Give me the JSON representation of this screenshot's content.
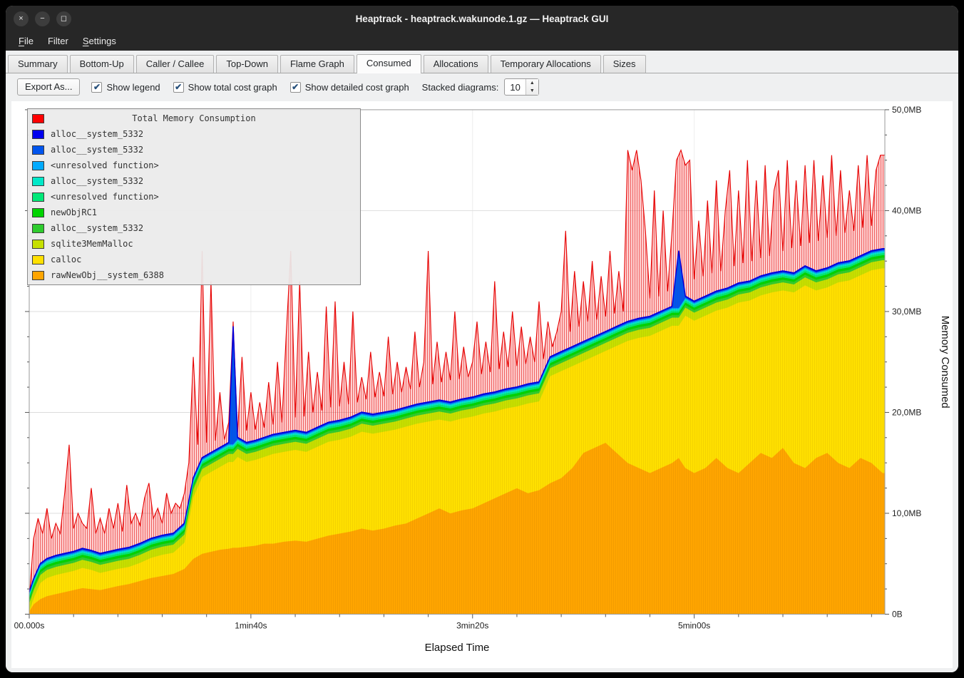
{
  "window": {
    "title": "Heaptrack - heaptrack.wakunode.1.gz — Heaptrack GUI",
    "controls": {
      "close": "×",
      "minimize": "−",
      "maximize": "◻"
    }
  },
  "menubar": {
    "items": [
      {
        "label": "File",
        "mnemonic": 0
      },
      {
        "label": "Filter",
        "mnemonic": null
      },
      {
        "label": "Settings",
        "mnemonic": 0
      }
    ]
  },
  "tabs": [
    {
      "label": "Summary",
      "active": false
    },
    {
      "label": "Bottom-Up",
      "active": false
    },
    {
      "label": "Caller / Callee",
      "active": false
    },
    {
      "label": "Top-Down",
      "active": false
    },
    {
      "label": "Flame Graph",
      "active": false
    },
    {
      "label": "Consumed",
      "active": true
    },
    {
      "label": "Allocations",
      "active": false
    },
    {
      "label": "Temporary Allocations",
      "active": false
    },
    {
      "label": "Sizes",
      "active": false
    }
  ],
  "toolbar": {
    "export_button": "Export As...",
    "checkboxes": [
      {
        "label": "Show legend",
        "checked": true
      },
      {
        "label": "Show total cost graph",
        "checked": true
      },
      {
        "label": "Show detailed cost graph",
        "checked": true
      }
    ],
    "stacked_label": "Stacked diagrams:",
    "stacked_value": "10"
  },
  "chart_data": {
    "type": "area",
    "title": "Total Memory Consumption",
    "units": "MB",
    "x_axis": {
      "label": "Elapsed Time",
      "max_seconds": 386,
      "ticks": [
        {
          "t": 0,
          "label": "00.000s"
        },
        {
          "t": 100,
          "label": "1min40s"
        },
        {
          "t": 200,
          "label": "3min20s"
        },
        {
          "t": 300,
          "label": "5min00s"
        }
      ]
    },
    "y_axis": {
      "label": "Memory Consumed",
      "max_mb": 50,
      "ticks": [
        {
          "v": 0,
          "label": "0B"
        },
        {
          "v": 10,
          "label": "10,0MB"
        },
        {
          "v": 20,
          "label": "20,0MB"
        },
        {
          "v": 30,
          "label": "30,0MB"
        },
        {
          "v": 40,
          "label": "40,0MB"
        },
        {
          "v": 50,
          "label": "50,0MB"
        }
      ]
    },
    "legend": [
      {
        "label": "Total Memory Consumption",
        "color": "#ff0000",
        "is_title": true
      },
      {
        "label": "alloc__system_5332",
        "color": "#0000ee"
      },
      {
        "label": "alloc__system_5332",
        "color": "#0055ee"
      },
      {
        "label": "<unresolved function>",
        "color": "#00aaff"
      },
      {
        "label": "alloc__system_5332",
        "color": "#00e8c8"
      },
      {
        "label": "<unresolved function>",
        "color": "#00e878"
      },
      {
        "label": "newObjRC1",
        "color": "#00d400"
      },
      {
        "label": "alloc__system_5332",
        "color": "#2ecc2e"
      },
      {
        "label": "sqlite3MemMalloc",
        "color": "#c6e000"
      },
      {
        "label": "calloc",
        "color": "#ffe000"
      },
      {
        "label": "rawNewObj__system_6388",
        "color": "#ffa500"
      }
    ],
    "x": [
      0,
      2,
      5,
      8,
      12,
      16,
      20,
      24,
      28,
      32,
      36,
      40,
      45,
      50,
      55,
      60,
      65,
      70,
      74,
      78,
      82,
      86,
      90,
      92,
      94,
      98,
      102,
      106,
      110,
      115,
      120,
      125,
      130,
      135,
      140,
      145,
      150,
      155,
      160,
      165,
      170,
      175,
      180,
      185,
      190,
      195,
      200,
      205,
      210,
      215,
      220,
      225,
      230,
      235,
      240,
      245,
      250,
      255,
      260,
      265,
      270,
      275,
      280,
      285,
      290,
      293,
      296,
      300,
      305,
      310,
      315,
      320,
      325,
      330,
      335,
      340,
      345,
      350,
      355,
      360,
      365,
      370,
      375,
      380,
      385
    ],
    "stack_series_bottom_to_top": [
      {
        "name": "rawNewObj__system_6388",
        "color": "#ffa500",
        "values": [
          0.3,
          1.0,
          1.5,
          1.8,
          2.0,
          2.2,
          2.4,
          2.6,
          2.5,
          2.4,
          2.6,
          2.8,
          3.0,
          3.3,
          3.6,
          3.8,
          4.0,
          4.5,
          5.5,
          6.0,
          6.2,
          6.4,
          6.5,
          6.6,
          6.6,
          6.7,
          6.8,
          7.0,
          7.0,
          7.2,
          7.3,
          7.2,
          7.5,
          7.8,
          8.0,
          8.2,
          8.5,
          8.3,
          8.5,
          8.8,
          9.0,
          9.5,
          10.0,
          10.5,
          10.0,
          10.3,
          10.5,
          11.0,
          11.5,
          12.0,
          12.5,
          12.0,
          12.3,
          13.0,
          13.5,
          14.5,
          16.0,
          16.5,
          17.0,
          16.0,
          15.0,
          14.5,
          14.0,
          14.5,
          15.0,
          15.5,
          14.5,
          14.0,
          14.5,
          15.5,
          14.5,
          14.0,
          15.0,
          16.0,
          15.5,
          16.5,
          15.0,
          14.5,
          15.5,
          16.0,
          15.0,
          14.5,
          15.5,
          15.0,
          14.0
        ]
      },
      {
        "name": "calloc",
        "color": "#ffe000",
        "values": [
          0,
          0.6,
          1.6,
          1.8,
          1.9,
          1.9,
          1.9,
          2.0,
          1.9,
          1.7,
          1.7,
          1.7,
          1.7,
          1.8,
          2.0,
          2.1,
          2.1,
          2.6,
          6.1,
          7.6,
          7.9,
          8.2,
          8.6,
          8.5,
          9.0,
          8.4,
          8.5,
          8.6,
          8.9,
          8.9,
          9.0,
          8.9,
          9.1,
          9.3,
          9.3,
          9.4,
          9.6,
          9.6,
          9.6,
          9.5,
          9.6,
          9.4,
          9.1,
          8.8,
          9.1,
          9.1,
          9.1,
          8.9,
          8.6,
          8.4,
          8.1,
          8.9,
          8.8,
          10.6,
          10.6,
          10.1,
          9.1,
          9.1,
          9.1,
          10.6,
          12.1,
          12.9,
          13.6,
          13.6,
          13.6,
          13.1,
          15.1,
          15.1,
          15.1,
          14.6,
          15.9,
          16.9,
          16.1,
          15.6,
          16.4,
          15.6,
          16.9,
          18.1,
          16.6,
          16.4,
          17.9,
          18.6,
          18.1,
          19.1,
          20.3
        ]
      },
      {
        "name": "sqlite3MemMalloc",
        "color": "#c6e000",
        "const": 0.8
      },
      {
        "name": "alloc__system_5332",
        "color": "#2ecc2e",
        "const": 0.25
      },
      {
        "name": "newObjRC1",
        "color": "#00d400",
        "const": 0.25
      },
      {
        "name": "<unresolved function>",
        "color": "#00e878",
        "const": 0.2
      },
      {
        "name": "alloc__system_5332",
        "color": "#00e8c8",
        "const": 0.15
      },
      {
        "name": "<unresolved function>",
        "color": "#00aaff",
        "const": 0.1
      },
      {
        "name": "alloc__system_5332",
        "color": "#0055ee",
        "values": [
          0.1,
          0.1,
          0.1,
          0.1,
          0.1,
          0.1,
          0.1,
          0.1,
          0.1,
          0.1,
          0.1,
          0.1,
          0.1,
          0.1,
          0.1,
          0.1,
          0.1,
          0.1,
          0.1,
          0.1,
          0.1,
          0.1,
          0.1,
          11.6,
          0.1,
          0.1,
          0.1,
          0.1,
          0.1,
          0.1,
          0.1,
          0.1,
          0.1,
          0.1,
          0.1,
          0.1,
          0.1,
          0.1,
          0.1,
          0.1,
          0.1,
          0.1,
          0.1,
          0.1,
          0.1,
          0.1,
          0.1,
          0.1,
          0.1,
          0.1,
          0.1,
          0.1,
          0.1,
          0.1,
          0.1,
          0.1,
          0.1,
          0.1,
          0.1,
          0.1,
          0.1,
          0.1,
          0.1,
          0.1,
          0.1,
          5.6,
          0.1,
          0.1,
          0.1,
          0.1,
          0.1,
          0.1,
          0.1,
          0.1,
          0.1,
          0.1,
          0.1,
          0.1,
          0.1,
          0.1,
          0.1,
          0.1,
          0.1,
          0.1,
          0.1
        ]
      },
      {
        "name": "alloc__system_5332",
        "color": "#0000ee",
        "const": 0.08
      }
    ],
    "total_series": {
      "name": "Total Memory Consumption",
      "color": "#ff0000",
      "x_step_seconds": 2,
      "values": [
        1.5,
        7.5,
        9.5,
        8,
        10.5,
        7.5,
        9,
        8,
        12,
        16.8,
        8.5,
        10,
        9,
        8.5,
        12.5,
        8,
        9.5,
        8,
        10.5,
        8.5,
        11,
        8.2,
        12.8,
        9,
        10,
        8.8,
        11.5,
        13,
        9.5,
        10.5,
        9,
        12,
        10,
        11,
        10.5,
        12,
        15,
        25.5,
        16.8,
        36,
        17,
        33,
        17.2,
        22,
        17.3,
        19,
        29,
        18,
        25.5,
        18.2,
        22,
        18.3,
        21,
        18.5,
        23,
        18.8,
        25,
        19,
        28,
        36,
        19.5,
        33,
        19.6,
        26,
        20,
        24,
        20.2,
        30.5,
        20.5,
        31,
        20.6,
        25,
        20.8,
        30,
        21,
        23.5,
        21.3,
        26,
        21.5,
        24,
        21.6,
        27.5,
        21.8,
        25,
        22,
        24.5,
        22.3,
        28,
        22.5,
        25,
        36,
        22.8,
        27,
        23,
        26,
        23.2,
        30,
        23.3,
        26.5,
        23.5,
        25,
        29,
        23.8,
        27,
        24,
        33,
        24.3,
        28,
        24.5,
        30,
        24.6,
        28.5,
        24.8,
        27.5,
        25,
        31,
        25.3,
        29,
        26.5,
        28,
        30,
        38,
        28,
        34,
        28.5,
        33,
        29,
        35,
        29.2,
        33.5,
        29.5,
        36,
        29.8,
        34,
        30,
        46,
        44,
        46,
        43,
        38,
        31.3,
        42,
        31.5,
        40,
        32,
        38,
        45,
        46,
        44.5,
        45,
        33.2,
        39,
        33.5,
        41,
        33.8,
        43,
        34,
        40,
        44,
        34.5,
        42,
        34.8,
        45,
        35,
        43,
        35.3,
        44.5,
        35.5,
        42,
        44,
        36,
        45,
        36.3,
        43,
        36.5,
        44.5,
        36.8,
        45,
        37,
        43.5,
        37.3,
        45.5,
        37.5,
        44,
        37.8,
        42,
        38,
        44.5,
        38.3,
        45.5,
        38.5,
        44,
        45.5
      ]
    }
  }
}
